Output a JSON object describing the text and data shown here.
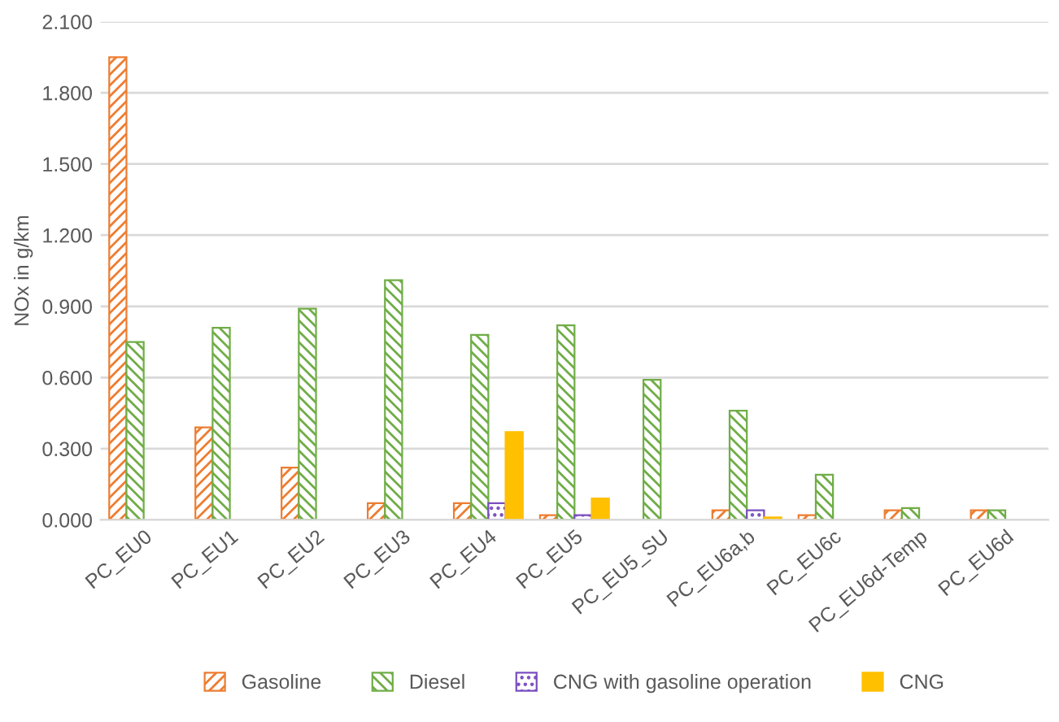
{
  "chart_data": {
    "type": "bar",
    "ylabel": "NOx in g/km",
    "categories": [
      "PC_EU0",
      "PC_EU1",
      "PC_EU2",
      "PC_EU3",
      "PC_EU4",
      "PC_EU5",
      "PC_EU5_SU",
      "PC_EU6a,b",
      "PC_EU6c",
      "PC_EU6d-Temp",
      "PC_EU6d"
    ],
    "series": [
      {
        "name": "Gasoline",
        "color": "#ed7d31",
        "values": [
          1.95,
          0.39,
          0.22,
          0.07,
          0.07,
          0.02,
          null,
          0.04,
          0.02,
          0.04,
          0.04
        ]
      },
      {
        "name": "Diesel",
        "color": "#70ad47",
        "values": [
          0.75,
          0.81,
          0.89,
          1.01,
          0.78,
          0.82,
          0.59,
          0.46,
          0.19,
          0.05,
          0.04
        ]
      },
      {
        "name": "CNG with gasoline operation",
        "color": "#7a4fc0",
        "values": [
          null,
          null,
          null,
          null,
          0.07,
          0.02,
          null,
          0.04,
          null,
          null,
          null
        ]
      },
      {
        "name": "CNG",
        "color": "#ffc000",
        "values": [
          null,
          null,
          null,
          null,
          0.37,
          0.09,
          null,
          0.01,
          null,
          null,
          null
        ]
      }
    ],
    "ylim": [
      0,
      2.1
    ],
    "yticks": [
      {
        "value": 0,
        "label": "0.000"
      },
      {
        "value": 0.3,
        "label": "0.300"
      },
      {
        "value": 0.6,
        "label": "0.600"
      },
      {
        "value": 0.9,
        "label": "0.900"
      },
      {
        "value": 1.2,
        "label": "1.200"
      },
      {
        "value": 1.5,
        "label": "1.500"
      },
      {
        "value": 1.8,
        "label": "1.800"
      },
      {
        "value": 2.1,
        "label": "2.100"
      }
    ],
    "grid": "y",
    "legend": "bottom"
  }
}
